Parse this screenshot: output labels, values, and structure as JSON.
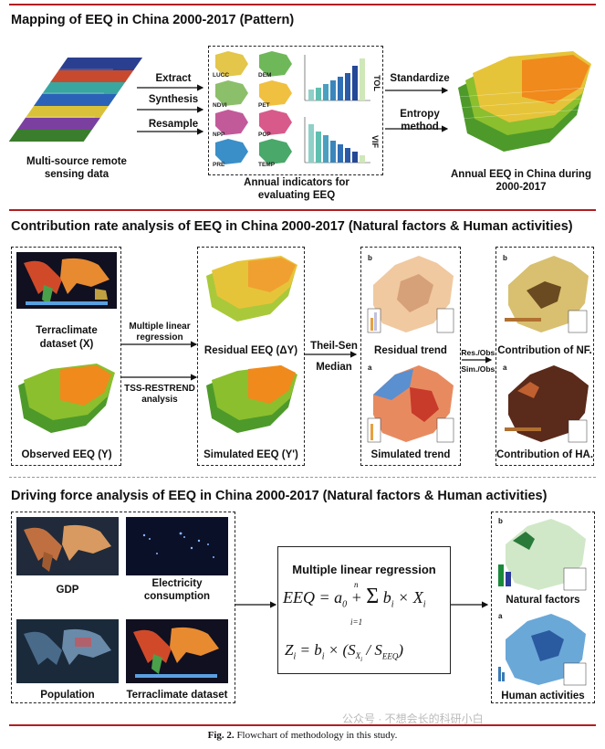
{
  "section1": {
    "title": "Mapping of EEQ in China 2000-2017 (Pattern)",
    "left_label": "Multi-source remote sensing data",
    "ops": [
      "Extract",
      "Synthesis",
      "Resample"
    ],
    "indicators": [
      "LUCC",
      "DEM",
      "NDVI",
      "PET",
      "NPP",
      "POP",
      "PRE",
      "TEMP"
    ],
    "chart_axis_top": "TOL",
    "chart_axis_bottom": "VIF",
    "indicators_caption": "Annual indicators for evaluating EEQ",
    "standardize": "Standardize",
    "entropy": "Entropy method",
    "right_label": "Annual EEQ in China during 2000-2017"
  },
  "section2": {
    "title": "Contribution rate analysis of EEQ in China 2000-2017 (Natural factors & Human activities)",
    "terraclimate": "Terraclimate dataset (X)",
    "observed": "Observed EEQ (Y)",
    "mlr": "Multiple linear regression",
    "tss": "TSS-RESTREND analysis",
    "residual": "Residual EEQ (ΔY)",
    "simulated": "Simulated EEQ (Y')",
    "theil": "Theil-Sen",
    "median": "Median",
    "residual_trend": "Residual trend",
    "simulated_trend": "Simulated trend",
    "res_obs": "Res./Obs.",
    "sim_obs": "Sim./Obs.",
    "contrib_nf": "Contribution of NF.",
    "contrib_ha": "Contribution of HA.",
    "panel_b": "b",
    "panel_a": "a"
  },
  "section3": {
    "title": "Driving force analysis of EEQ in China 2000-2017 (Natural factors & Human activities)",
    "gdp": "GDP",
    "electricity": "Electricity consumption",
    "population": "Population",
    "terraclimate": "Terraclimate dataset",
    "mlr_title": "Multiple linear regression",
    "natural": "Natural factors",
    "human": "Human activities",
    "panel_b": "b",
    "panel_a": "a"
  },
  "caption": {
    "figure": "Fig. 2.",
    "text": "Flowchart of methodology in this study."
  },
  "watermark": "公众号 · 不想会长的科研小白",
  "colors": {
    "rule": "#b11e22",
    "eeq_green": "#4d9a2a",
    "eeq_orange": "#f08a1c",
    "bar_blue": "#2f6fb6",
    "bar_teal": "#5fbfb0"
  }
}
